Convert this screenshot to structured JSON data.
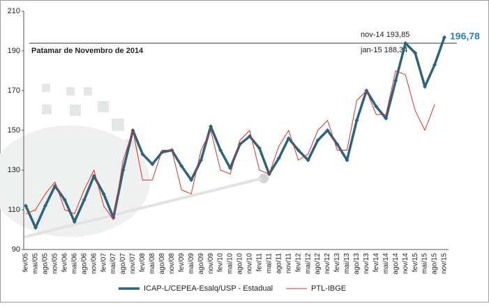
{
  "chart_data": {
    "type": "line",
    "categories": [
      "fev/05",
      "mai/05",
      "ago/05",
      "nov/05",
      "fev/06",
      "mai/06",
      "ago/06",
      "nov/06",
      "fev/07",
      "mai/07",
      "ago/07",
      "nov/07",
      "fev/08",
      "mai/08",
      "ago/08",
      "nov/08",
      "fev/09",
      "mai/09",
      "ago/09",
      "nov/09",
      "fev/10",
      "mai/10",
      "ago/10",
      "nov/10",
      "fev/11",
      "mai/11",
      "ago/11",
      "nov/11",
      "fev/12",
      "mai/12",
      "ago/12",
      "nov/12",
      "fev/13",
      "mai/13",
      "ago/13",
      "nov/13",
      "fev/14",
      "mai/14",
      "ago/14",
      "nov/14",
      "fev/15",
      "mai/15",
      "ago/15",
      "nov/15"
    ],
    "series": [
      {
        "name": "ICAP-L/CEPEA-Esalq/USP - Estadual",
        "color": "#2e6479",
        "values": [
          112,
          101,
          112,
          122,
          115,
          104,
          115,
          127,
          118,
          106,
          130,
          150,
          138,
          133,
          139,
          140,
          132,
          125,
          135,
          152,
          140,
          131,
          143,
          147,
          141,
          128,
          136,
          146,
          140,
          135,
          145,
          150,
          143,
          135,
          155,
          170,
          162,
          156,
          175,
          193.85,
          189,
          172,
          183,
          196.78
        ]
      },
      {
        "name": "PTL-IBGE",
        "color": "#d9302b",
        "values": [
          108,
          110,
          118,
          124,
          110,
          108,
          120,
          130,
          112,
          105,
          135,
          150,
          125,
          125,
          140,
          140,
          120,
          118,
          140,
          150,
          130,
          128,
          145,
          150,
          130,
          128,
          142,
          150,
          135,
          138,
          150,
          155,
          140,
          140,
          165,
          170,
          158,
          158,
          180,
          178,
          160,
          150,
          163,
          null
        ]
      }
    ],
    "ylim": [
      90,
      210
    ],
    "yticks": [
      90,
      110,
      130,
      150,
      170,
      190,
      210
    ],
    "reference_value": 193.85,
    "reference_label": "Patamar de Novembro de 2014",
    "annotations": [
      "nov-14 193,85",
      "jan-15 188,34",
      "196,78"
    ],
    "grid": false
  }
}
